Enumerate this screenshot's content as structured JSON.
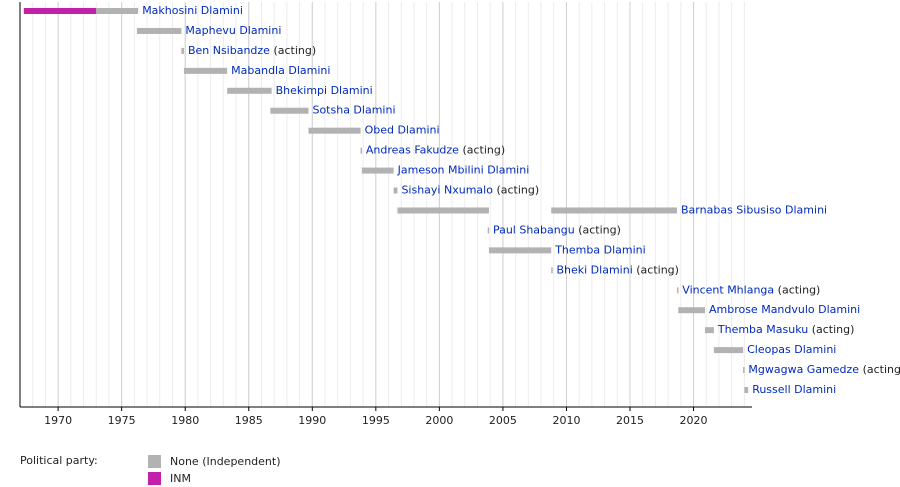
{
  "chart_data": {
    "type": "timeline",
    "xlim": [
      1967,
      2024.6
    ],
    "xticks": [
      1970,
      1975,
      1980,
      1985,
      1990,
      1995,
      2000,
      2005,
      2010,
      2015,
      2020
    ],
    "grid": true,
    "minor_grid": true,
    "legend_title": "Political party:",
    "parties": [
      {
        "name": "None (Independent)",
        "color": "#b2b2b2"
      },
      {
        "name": "INM",
        "color": "#c21fab"
      }
    ],
    "rows": [
      {
        "name": "Makhosini Dlamini",
        "bars": [
          {
            "start": 1967.3,
            "end": 1973,
            "party": "INM"
          },
          {
            "start": 1973,
            "end": 1976.3,
            "party": "None (Independent)"
          }
        ]
      },
      {
        "name": "Maphevu Dlamini",
        "bars": [
          {
            "start": 1976.2,
            "end": 1979.7,
            "party": "None (Independent)"
          }
        ]
      },
      {
        "name": "Ben Nsibandze",
        "note": "(acting)",
        "bars": [
          {
            "start": 1979.7,
            "end": 1979.9,
            "party": "None (Independent)"
          }
        ]
      },
      {
        "name": "Mabandla Dlamini",
        "bars": [
          {
            "start": 1979.9,
            "end": 1983.3,
            "party": "None (Independent)"
          }
        ]
      },
      {
        "name": "Bhekimpi Dlamini",
        "bars": [
          {
            "start": 1983.3,
            "end": 1986.8,
            "party": "None (Independent)"
          }
        ]
      },
      {
        "name": "Sotsha Dlamini",
        "bars": [
          {
            "start": 1986.7,
            "end": 1989.7,
            "party": "None (Independent)"
          }
        ]
      },
      {
        "name": "Obed Dlamini",
        "bars": [
          {
            "start": 1989.7,
            "end": 1993.8,
            "party": "None (Independent)"
          }
        ]
      },
      {
        "name": "Andreas Fakudze",
        "note": "(acting)",
        "bars": [
          {
            "start": 1993.8,
            "end": 1993.9,
            "party": "None (Independent)"
          }
        ]
      },
      {
        "name": "Jameson Mbilini Dlamini",
        "bars": [
          {
            "start": 1993.9,
            "end": 1996.4,
            "party": "None (Independent)"
          }
        ]
      },
      {
        "name": "Sishayi Nxumalo",
        "note": "(acting)",
        "bars": [
          {
            "start": 1996.4,
            "end": 1996.7,
            "party": "None (Independent)"
          }
        ]
      },
      {
        "name": "Barnabas Sibusiso Dlamini",
        "bars": [
          {
            "start": 1996.7,
            "end": 2003.9,
            "party": "None (Independent)"
          },
          {
            "start": 2008.8,
            "end": 2018.7,
            "party": "None (Independent)"
          }
        ]
      },
      {
        "name": "Paul Shabangu",
        "note": "(acting)",
        "bars": [
          {
            "start": 2003.8,
            "end": 2003.9,
            "party": "None (Independent)"
          }
        ]
      },
      {
        "name": "Themba Dlamini",
        "bars": [
          {
            "start": 2003.9,
            "end": 2008.8,
            "party": "None (Independent)"
          }
        ]
      },
      {
        "name": "Bheki Dlamini",
        "note": "(acting)",
        "bars": [
          {
            "start": 2008.8,
            "end": 2008.9,
            "party": "None (Independent)"
          }
        ]
      },
      {
        "name": "Vincent Mhlanga",
        "note": "(acting)",
        "bars": [
          {
            "start": 2018.7,
            "end": 2018.8,
            "party": "None (Independent)"
          }
        ]
      },
      {
        "name": "Ambrose Mandvulo Dlamini",
        "bars": [
          {
            "start": 2018.8,
            "end": 2020.9,
            "party": "None (Independent)"
          }
        ]
      },
      {
        "name": "Themba Masuku",
        "note": "(acting)",
        "bars": [
          {
            "start": 2020.9,
            "end": 2021.6,
            "party": "None (Independent)"
          }
        ]
      },
      {
        "name": "Cleopas Dlamini",
        "bars": [
          {
            "start": 2021.6,
            "end": 2023.9,
            "party": "None (Independent)"
          }
        ]
      },
      {
        "name": "Mgwagwa Gamedze",
        "note": "(acting)",
        "bars": [
          {
            "start": 2023.9,
            "end": 2024,
            "party": "None (Independent)"
          }
        ]
      },
      {
        "name": "Russell Dlamini",
        "bars": [
          {
            "start": 2024,
            "end": 2024.3,
            "party": "None (Independent)"
          }
        ]
      }
    ]
  }
}
